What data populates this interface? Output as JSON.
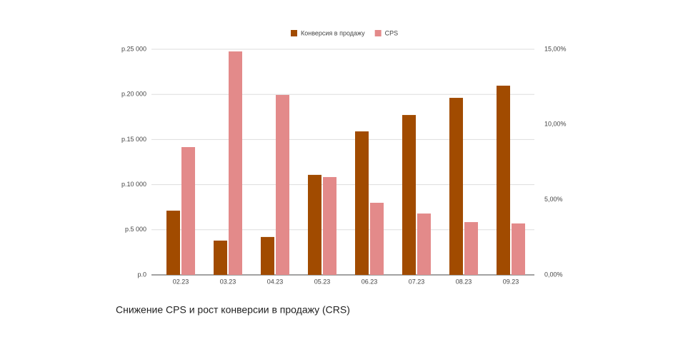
{
  "chart_data": {
    "type": "bar",
    "caption": "Снижение CPS и рост конверсии в продажу (CRS)",
    "categories": [
      "02.23",
      "03.23",
      "04.23",
      "05.23",
      "06.23",
      "07.23",
      "08.23",
      "09.23"
    ],
    "series": [
      {
        "name": "Конверсия в продажу",
        "color": "#a14b00",
        "axis": "y2",
        "values": [
          4.27,
          2.28,
          2.52,
          6.65,
          9.54,
          10.63,
          11.77,
          12.58
        ]
      },
      {
        "name": "CPS",
        "color": "#e38a8a",
        "values": [
          14160,
          24760,
          19940,
          10840,
          7990,
          6800,
          5850,
          5700
        ]
      }
    ],
    "ylim": [
      0,
      25000
    ],
    "yticks": [
      {
        "value": 0,
        "label": "р.0"
      },
      {
        "value": 5000,
        "label": "р.5 000"
      },
      {
        "value": 10000,
        "label": "р.10 000"
      },
      {
        "value": 15000,
        "label": "р.15 000"
      },
      {
        "value": 20000,
        "label": "р.20 000"
      },
      {
        "value": 25000,
        "label": "р.25 000"
      }
    ],
    "y2lim": [
      0,
      15
    ],
    "y2ticks": [
      {
        "value": 0,
        "label": "0,00%"
      },
      {
        "value": 5,
        "label": "5,00%"
      },
      {
        "value": 10,
        "label": "10,00%"
      },
      {
        "value": 15,
        "label": "15,00%"
      }
    ],
    "grid": true,
    "legend": "top"
  }
}
